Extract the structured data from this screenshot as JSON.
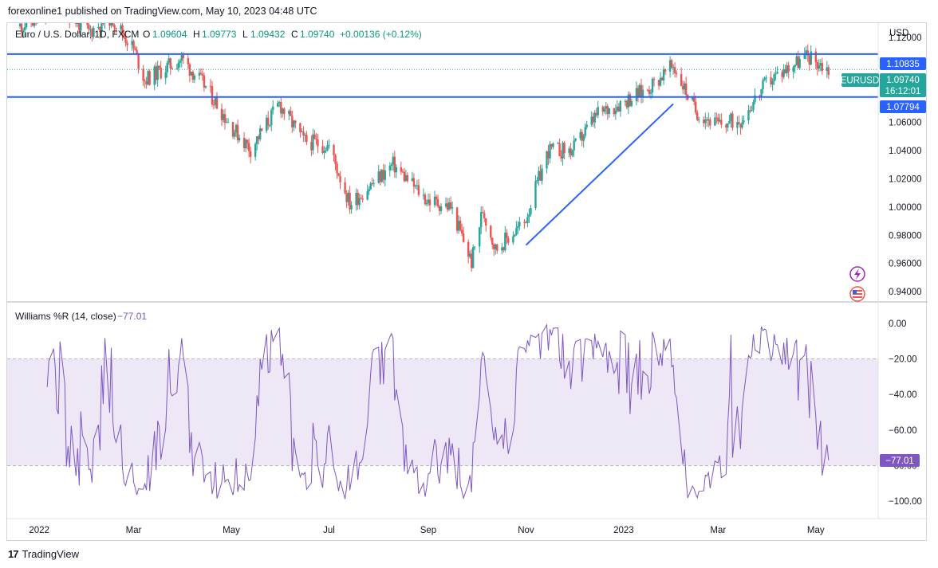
{
  "header": {
    "publish_line": "forexonline1 published on TradingView.com, May 10, 2023 04:48 UTC"
  },
  "footer": {
    "brand": "TradingView",
    "logo_glyph": "17"
  },
  "legend": {
    "symbol": "Euro / U.S. Dollar, 1D, FXCM",
    "open_label": "O",
    "open": "1.09604",
    "high_label": "H",
    "high": "1.09773",
    "low_label": "L",
    "low": "1.09432",
    "close_label": "C",
    "close": "1.09740",
    "change": "+0.00136 (+0.12%)"
  },
  "price_axis": {
    "currency": "USD",
    "ticks": [
      "1.12000",
      "1.10000",
      "1.08000",
      "1.06000",
      "1.04000",
      "1.02000",
      "1.00000",
      "0.98000",
      "0.96000",
      "0.94000"
    ]
  },
  "badges": {
    "resistance": "1.10835",
    "support": "1.07794",
    "symbol": "EURUSD",
    "price": "1.09740",
    "countdown": "16:12:01",
    "wr": "−77.01"
  },
  "indicator": {
    "name": "Williams %R (14, close)",
    "value": "−77.01",
    "ticks": [
      "0.00",
      "−20.00",
      "−40.00",
      "−60.00",
      "−80.00",
      "−100.00"
    ]
  },
  "time_axis": [
    "2022",
    "Mar",
    "May",
    "Jul",
    "Sep",
    "Nov",
    "2023",
    "Mar",
    "May"
  ],
  "colors": {
    "up": "#26a69a",
    "down": "#ef5350",
    "line": "#2962ff",
    "wr": "#7e57c2",
    "band": "#ede7f6",
    "badge_price": "#26a69a",
    "badge_level": "#2962ff"
  },
  "chart_data": [
    {
      "type": "candlestick",
      "title": "Euro / U.S. Dollar, 1D, FXCM",
      "ylabel": "USD",
      "ylim": [
        0.935,
        1.128
      ],
      "horizontal_levels": [
        1.10835,
        1.07794
      ],
      "trendline": [
        [
          "2022-11-01",
          0.973
        ],
        [
          "2023-02-01",
          1.073
        ]
      ],
      "monthly_path": [
        [
          "2021-12-20",
          1.128
        ],
        [
          "2022-01-01",
          1.133
        ],
        [
          "2022-01-15",
          1.141
        ],
        [
          "2022-02-01",
          1.124
        ],
        [
          "2022-02-15",
          1.135
        ],
        [
          "2022-03-01",
          1.112
        ],
        [
          "2022-03-08",
          1.09
        ],
        [
          "2022-03-31",
          1.105
        ],
        [
          "2022-04-15",
          1.085
        ],
        [
          "2022-05-01",
          1.057
        ],
        [
          "2022-05-13",
          1.041
        ],
        [
          "2022-05-31",
          1.073
        ],
        [
          "2022-06-15",
          1.047
        ],
        [
          "2022-07-01",
          1.043
        ],
        [
          "2022-07-14",
          1.002
        ],
        [
          "2022-08-10",
          1.03
        ],
        [
          "2022-08-31",
          1.005
        ],
        [
          "2022-09-15",
          1.0
        ],
        [
          "2022-09-28",
          0.961
        ],
        [
          "2022-10-05",
          0.998
        ],
        [
          "2022-10-13",
          0.97
        ],
        [
          "2022-10-31",
          0.989
        ],
        [
          "2022-11-15",
          1.04
        ],
        [
          "2022-11-30",
          1.04
        ],
        [
          "2022-12-15",
          1.065
        ],
        [
          "2023-01-15",
          1.083
        ],
        [
          "2023-02-01",
          1.1
        ],
        [
          "2023-02-15",
          1.068
        ],
        [
          "2023-03-01",
          1.058
        ],
        [
          "2023-03-15",
          1.062
        ],
        [
          "2023-04-01",
          1.089
        ],
        [
          "2023-04-15",
          1.1
        ],
        [
          "2023-04-26",
          1.107
        ],
        [
          "2023-05-09",
          1.0974
        ]
      ]
    },
    {
      "type": "line",
      "title": "Williams %R (14, close)",
      "ylim": [
        -100,
        0
      ],
      "bands": [
        -20,
        -50,
        -80
      ],
      "last": -77.01
    }
  ]
}
